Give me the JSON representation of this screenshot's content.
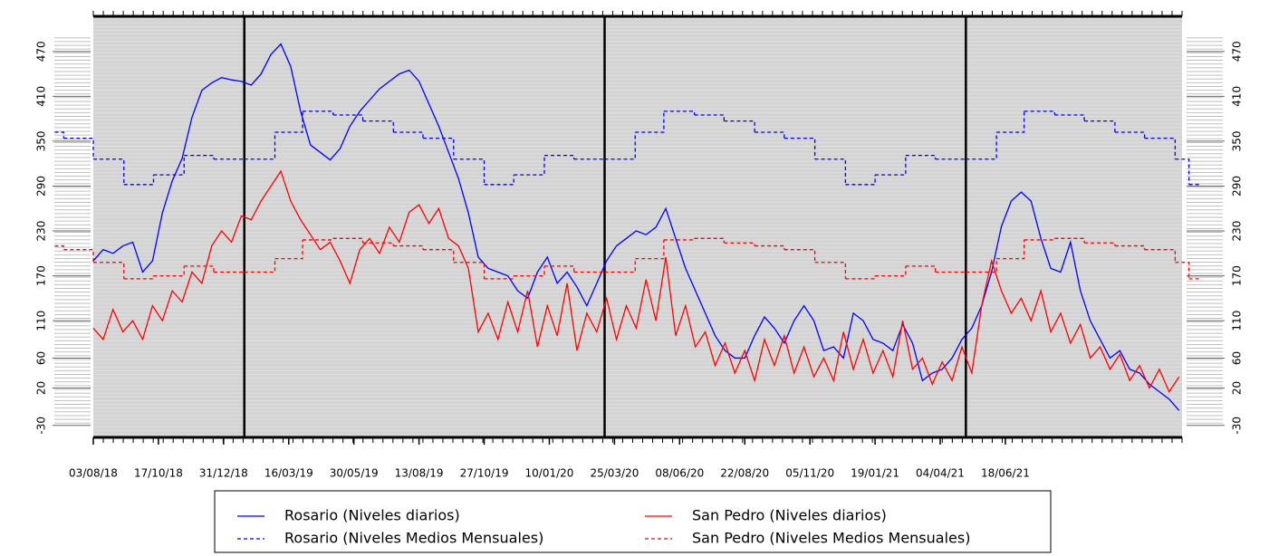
{
  "chart_data": {
    "type": "line",
    "xlim": [
      0,
      1103
    ],
    "ylim": [
      -46,
      517
    ],
    "xticks": [
      {
        "value": 0,
        "label": "03/08/18"
      },
      {
        "value": 66,
        "label": "17/10/18"
      },
      {
        "value": 132,
        "label": "31/12/18"
      },
      {
        "value": 198,
        "label": "16/03/19"
      },
      {
        "value": 264,
        "label": "30/05/19"
      },
      {
        "value": 330,
        "label": "13/08/19"
      },
      {
        "value": 396,
        "label": "27/10/19"
      },
      {
        "value": 462,
        "label": "10/01/20"
      },
      {
        "value": 528,
        "label": "25/03/20"
      },
      {
        "value": 594,
        "label": "08/06/20"
      },
      {
        "value": 660,
        "label": "22/08/20"
      },
      {
        "value": 726,
        "label": "05/11/20"
      },
      {
        "value": 792,
        "label": "19/01/21"
      },
      {
        "value": 858,
        "label": "04/04/21"
      },
      {
        "value": 924,
        "label": "18/06/21"
      }
    ],
    "yticks": [
      -30,
      20,
      60,
      110,
      170,
      230,
      290,
      350,
      410,
      470
    ],
    "vlines": [
      153,
      518,
      884
    ],
    "legend": "bottom",
    "series": [
      {
        "name": "Rosario (Niveles diarios)",
        "color": "#0000ff",
        "dashed": false,
        "x": [
          0,
          10,
          20,
          30,
          40,
          50,
          60,
          70,
          80,
          90,
          100,
          110,
          120,
          130,
          140,
          150,
          160,
          170,
          180,
          190,
          200,
          210,
          220,
          230,
          240,
          250,
          260,
          270,
          280,
          290,
          300,
          310,
          320,
          330,
          340,
          350,
          360,
          370,
          380,
          390,
          400,
          410,
          420,
          430,
          440,
          450,
          460,
          470,
          480,
          490,
          500,
          510,
          520,
          530,
          540,
          550,
          560,
          570,
          580,
          590,
          600,
          610,
          620,
          630,
          640,
          650,
          660,
          670,
          680,
          690,
          700,
          710,
          720,
          730,
          740,
          750,
          760,
          770,
          780,
          790,
          800,
          810,
          820,
          830,
          840,
          850,
          860,
          870,
          880,
          890,
          900,
          910,
          920,
          930,
          940,
          950,
          960,
          970,
          980,
          990,
          1000,
          1010,
          1020,
          1030,
          1040,
          1050,
          1060,
          1070,
          1080,
          1090,
          1100
        ],
        "values": [
          190,
          205,
          200,
          210,
          215,
          175,
          190,
          254,
          297,
          327,
          382,
          418,
          428,
          435,
          432,
          430,
          425,
          440,
          466,
          480,
          450,
          390,
          345,
          335,
          325,
          340,
          370,
          390,
          405,
          420,
          430,
          440,
          445,
          430,
          400,
          370,
          335,
          300,
          254,
          195,
          180,
          175,
          170,
          150,
          140,
          175,
          195,
          160,
          175,
          155,
          130,
          160,
          190,
          210,
          220,
          230,
          225,
          235,
          260,
          220,
          180,
          150,
          120,
          90,
          70,
          60,
          60,
          90,
          115,
          100,
          80,
          110,
          130,
          110,
          70,
          75,
          60,
          120,
          110,
          85,
          80,
          70,
          105,
          80,
          30,
          40,
          45,
          60,
          85,
          100,
          130,
          175,
          236,
          270,
          282,
          270,
          220,
          180,
          175,
          215,
          150,
          110,
          85,
          60,
          70,
          45,
          40,
          25,
          15,
          5,
          -10
        ]
      },
      {
        "name": "Rosario (Niveles Medios Mensuales)",
        "color": "#0000ff",
        "dashed": true,
        "x": [
          -39,
          -30,
          0,
          31,
          61,
          92,
          122,
          153,
          184,
          212,
          243,
          273,
          304,
          334,
          365,
          396,
          426,
          457,
          487,
          518,
          549,
          578,
          609,
          639,
          670,
          700,
          731,
          762,
          792,
          823,
          853,
          884,
          915,
          943,
          974,
          1004,
          1035,
          1065,
          1096,
          1110,
          1121
        ],
        "values": [
          362,
          354,
          326,
          292,
          305,
          331,
          326,
          326,
          362,
          390,
          385,
          377,
          362,
          354,
          326,
          292,
          305,
          331,
          326,
          326,
          362,
          390,
          385,
          377,
          362,
          354,
          326,
          292,
          305,
          331,
          326,
          326,
          362,
          390,
          385,
          377,
          362,
          354,
          326,
          292,
          292
        ]
      },
      {
        "name": "San Pedro (Niveles diarios)",
        "color": "#ff0000",
        "dashed": false,
        "x": [
          0,
          10,
          20,
          30,
          40,
          50,
          60,
          70,
          80,
          90,
          100,
          110,
          120,
          130,
          140,
          150,
          160,
          170,
          180,
          190,
          200,
          210,
          220,
          230,
          240,
          250,
          260,
          270,
          280,
          290,
          300,
          310,
          320,
          330,
          340,
          350,
          360,
          370,
          380,
          390,
          400,
          410,
          420,
          430,
          440,
          450,
          460,
          470,
          480,
          490,
          500,
          510,
          520,
          530,
          540,
          550,
          560,
          570,
          580,
          590,
          600,
          610,
          620,
          630,
          640,
          650,
          660,
          670,
          680,
          690,
          700,
          710,
          720,
          730,
          740,
          750,
          760,
          770,
          780,
          790,
          800,
          810,
          820,
          830,
          840,
          850,
          860,
          870,
          880,
          890,
          900,
          910,
          920,
          930,
          940,
          950,
          960,
          970,
          980,
          990,
          1000,
          1010,
          1020,
          1030,
          1040,
          1050,
          1060,
          1070,
          1080,
          1090,
          1100
        ],
        "values": [
          100,
          85,
          125,
          95,
          110,
          85,
          130,
          110,
          150,
          135,
          175,
          160,
          210,
          230,
          215,
          250,
          245,
          270,
          290,
          310,
          270,
          245,
          225,
          205,
          215,
          190,
          160,
          205,
          220,
          200,
          235,
          215,
          255,
          265,
          240,
          260,
          220,
          210,
          180,
          95,
          120,
          85,
          135,
          95,
          150,
          75,
          130,
          90,
          160,
          70,
          120,
          95,
          140,
          85,
          130,
          100,
          165,
          110,
          195,
          90,
          130,
          75,
          95,
          50,
          80,
          40,
          70,
          30,
          85,
          50,
          90,
          40,
          75,
          35,
          60,
          30,
          95,
          45,
          85,
          40,
          70,
          35,
          110,
          45,
          60,
          25,
          55,
          30,
          75,
          40,
          130,
          190,
          150,
          120,
          140,
          110,
          150,
          95,
          120,
          80,
          105,
          60,
          75,
          45,
          65,
          30,
          50,
          20,
          45,
          15,
          35
        ]
      },
      {
        "name": "San Pedro (Niveles Medios Mensuales)",
        "color": "#ff0000",
        "dashed": true,
        "x": [
          -39,
          -30,
          0,
          31,
          61,
          92,
          122,
          153,
          184,
          212,
          243,
          273,
          304,
          334,
          365,
          396,
          426,
          457,
          487,
          518,
          549,
          578,
          609,
          639,
          670,
          700,
          731,
          762,
          792,
          823,
          853,
          884,
          915,
          943,
          974,
          1004,
          1035,
          1065,
          1096,
          1110,
          1121
        ],
        "values": [
          210,
          205,
          188,
          166,
          170,
          183,
          175,
          175,
          193,
          218,
          220,
          214,
          210,
          205,
          188,
          166,
          170,
          183,
          175,
          175,
          193,
          218,
          220,
          214,
          210,
          205,
          188,
          166,
          170,
          183,
          175,
          175,
          193,
          218,
          220,
          214,
          210,
          205,
          188,
          166,
          166
        ]
      }
    ]
  }
}
